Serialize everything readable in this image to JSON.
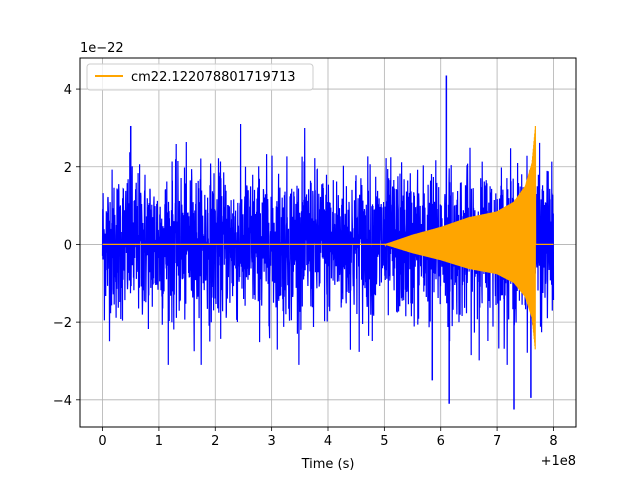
{
  "chart_data": {
    "type": "line",
    "title": "",
    "xlabel": "Time (s)",
    "ylabel": "",
    "x_offset_label": "+1e8",
    "y_scale_label": "1e−22",
    "xlim": [
      -0.4,
      8.4
    ],
    "ylim": [
      -4.7,
      4.8
    ],
    "x_ticks": [
      0,
      1,
      2,
      3,
      4,
      5,
      6,
      7,
      8
    ],
    "x_tick_labels": [
      "0",
      "1",
      "2",
      "3",
      "4",
      "5",
      "6",
      "7",
      "8"
    ],
    "y_ticks": [
      -4,
      -2,
      0,
      2,
      4
    ],
    "y_tick_labels": [
      "−4",
      "−2",
      "0",
      "2",
      "4"
    ],
    "grid": true,
    "legend_position": "top-left",
    "series": [
      {
        "name": "",
        "color": "#0000ff",
        "description_values": {
          "x_range": [
            0,
            8
          ],
          "typical_amplitude": 1.9,
          "peak_values": [
            {
              "x": 6.1,
              "y": 4.35
            },
            {
              "x": 6.15,
              "y": -4.1
            },
            {
              "x": 7.3,
              "y": -4.25
            },
            {
              "x": 5.85,
              "y": -3.5
            },
            {
              "x": 0.5,
              "y": 3.05
            },
            {
              "x": 7.6,
              "y": -3.95
            }
          ]
        }
      },
      {
        "name": "cm22.122078801719713",
        "color": "#ffa500",
        "description_values": {
          "x_range": [
            0,
            8
          ],
          "onset_x": 5.0,
          "envelope": [
            {
              "x": 5.0,
              "y": 0.0
            },
            {
              "x": 5.5,
              "y": 0.25
            },
            {
              "x": 6.0,
              "y": 0.45
            },
            {
              "x": 6.5,
              "y": 0.7
            },
            {
              "x": 7.0,
              "y": 0.85
            },
            {
              "x": 7.3,
              "y": 1.1
            },
            {
              "x": 7.5,
              "y": 1.5
            },
            {
              "x": 7.62,
              "y": 2.1
            },
            {
              "x": 7.68,
              "y": 3.05
            }
          ],
          "merger_x": 7.7
        }
      }
    ]
  }
}
